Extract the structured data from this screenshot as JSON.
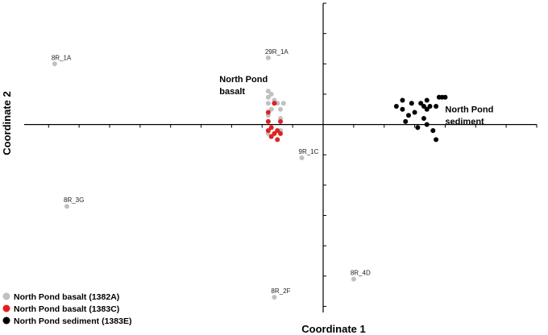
{
  "chart_data": {
    "type": "scatter",
    "xlabel": "Coordinate 1",
    "ylabel": "Coordinate 2",
    "xlim": [
      -0.98,
      0.7
    ],
    "ylim": [
      -0.62,
      0.4
    ],
    "grid": false,
    "legend_position": "bottom-left",
    "colors": {
      "1382A": "#c0c0c0",
      "1383C": "#e02020",
      "1383E": "#000000"
    },
    "series": [
      {
        "name": "North Pond basalt (1382A)",
        "key": "1382A",
        "points": [
          {
            "x": -0.88,
            "y": 0.2,
            "label": "8R_1A"
          },
          {
            "x": -0.18,
            "y": 0.22,
            "label": "29R_1A"
          },
          {
            "x": -0.07,
            "y": -0.11,
            "label": "9R_1C"
          },
          {
            "x": -0.84,
            "y": -0.27,
            "label": "8R_3G"
          },
          {
            "x": 0.1,
            "y": -0.51,
            "label": "8R_4D"
          },
          {
            "x": -0.16,
            "y": -0.57,
            "label": "8R_2F"
          },
          {
            "x": -0.18,
            "y": 0.11
          },
          {
            "x": -0.17,
            "y": 0.1
          },
          {
            "x": -0.18,
            "y": 0.09
          },
          {
            "x": -0.16,
            "y": 0.08
          },
          {
            "x": -0.18,
            "y": 0.07
          },
          {
            "x": -0.15,
            "y": 0.07
          },
          {
            "x": -0.13,
            "y": 0.07
          },
          {
            "x": -0.14,
            "y": 0.05
          },
          {
            "x": -0.17,
            "y": 0.05
          },
          {
            "x": -0.18,
            "y": 0.03
          },
          {
            "x": -0.14,
            "y": 0.02
          },
          {
            "x": -0.18,
            "y": -0.03
          },
          {
            "x": -0.14,
            "y": -0.02
          }
        ]
      },
      {
        "name": "North Pond basalt (1383C)",
        "key": "1383C",
        "points": [
          {
            "x": -0.16,
            "y": 0.07
          },
          {
            "x": -0.18,
            "y": 0.04
          },
          {
            "x": -0.18,
            "y": 0.01
          },
          {
            "x": -0.14,
            "y": 0.01
          },
          {
            "x": -0.17,
            "y": -0.01
          },
          {
            "x": -0.15,
            "y": -0.02
          },
          {
            "x": -0.18,
            "y": -0.02
          },
          {
            "x": -0.16,
            "y": -0.03
          },
          {
            "x": -0.14,
            "y": -0.03
          },
          {
            "x": -0.17,
            "y": -0.04
          },
          {
            "x": -0.15,
            "y": -0.05
          }
        ]
      },
      {
        "name": "North Pond sediment (1383E)",
        "key": "1383E",
        "points": [
          {
            "x": 0.24,
            "y": 0.06
          },
          {
            "x": 0.26,
            "y": 0.08
          },
          {
            "x": 0.26,
            "y": 0.05
          },
          {
            "x": 0.29,
            "y": 0.07
          },
          {
            "x": 0.3,
            "y": 0.04
          },
          {
            "x": 0.28,
            "y": 0.03
          },
          {
            "x": 0.27,
            "y": 0.01
          },
          {
            "x": 0.32,
            "y": 0.07
          },
          {
            "x": 0.33,
            "y": 0.06
          },
          {
            "x": 0.34,
            "y": 0.05
          },
          {
            "x": 0.34,
            "y": 0.08
          },
          {
            "x": 0.35,
            "y": 0.06
          },
          {
            "x": 0.37,
            "y": 0.06
          },
          {
            "x": 0.38,
            "y": 0.09
          },
          {
            "x": 0.39,
            "y": 0.09
          },
          {
            "x": 0.4,
            "y": 0.09
          },
          {
            "x": 0.33,
            "y": 0.02
          },
          {
            "x": 0.31,
            "y": -0.01
          },
          {
            "x": 0.34,
            "y": 0.0
          },
          {
            "x": 0.36,
            "y": -0.02
          },
          {
            "x": 0.37,
            "y": -0.05
          }
        ]
      }
    ],
    "group_labels": [
      {
        "text": "North Pond",
        "x": -0.34,
        "y": 0.14
      },
      {
        "text": "basalt",
        "x": -0.34,
        "y": 0.1
      },
      {
        "text": "North Pond",
        "x": 0.4,
        "y": 0.04
      },
      {
        "text": "sediment",
        "x": 0.4,
        "y": 0.0
      }
    ]
  }
}
